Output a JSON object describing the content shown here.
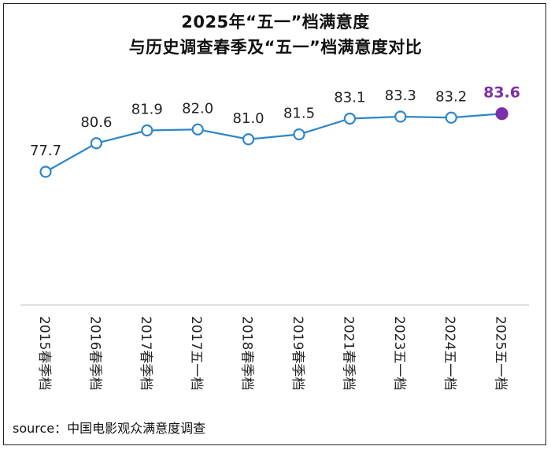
{
  "title": {
    "line1": "2025年“五一”档满意度",
    "line2": "与历史调查春季及“五一”档满意度对比"
  },
  "source": "source：中国电影观众满意度调查",
  "colors": {
    "line": "#2e86c8",
    "marker_fill": "#ffffff",
    "highlight": "#7b2fa8",
    "axis": "#bfbfbf",
    "text": "#222222"
  },
  "chart_data": {
    "type": "line",
    "title": "2025年“五一”档满意度 与历史调查春季及“五一”档满意度对比",
    "categories": [
      "2015春季档",
      "2016春季档",
      "2017春季档",
      "2017五一档",
      "2018春季档",
      "2019春季档",
      "2021春季档",
      "2023五一档",
      "2024五一档",
      "2025五一档"
    ],
    "values": [
      77.7,
      80.6,
      81.9,
      82.0,
      81.0,
      81.5,
      83.1,
      83.3,
      83.2,
      83.6
    ],
    "labels": [
      "77.7",
      "80.6",
      "81.9",
      "82.0",
      "81.0",
      "81.5",
      "83.1",
      "83.3",
      "83.2",
      "83.6"
    ],
    "highlight_index": 9,
    "xlabel": "",
    "ylabel": "",
    "grid": false
  }
}
